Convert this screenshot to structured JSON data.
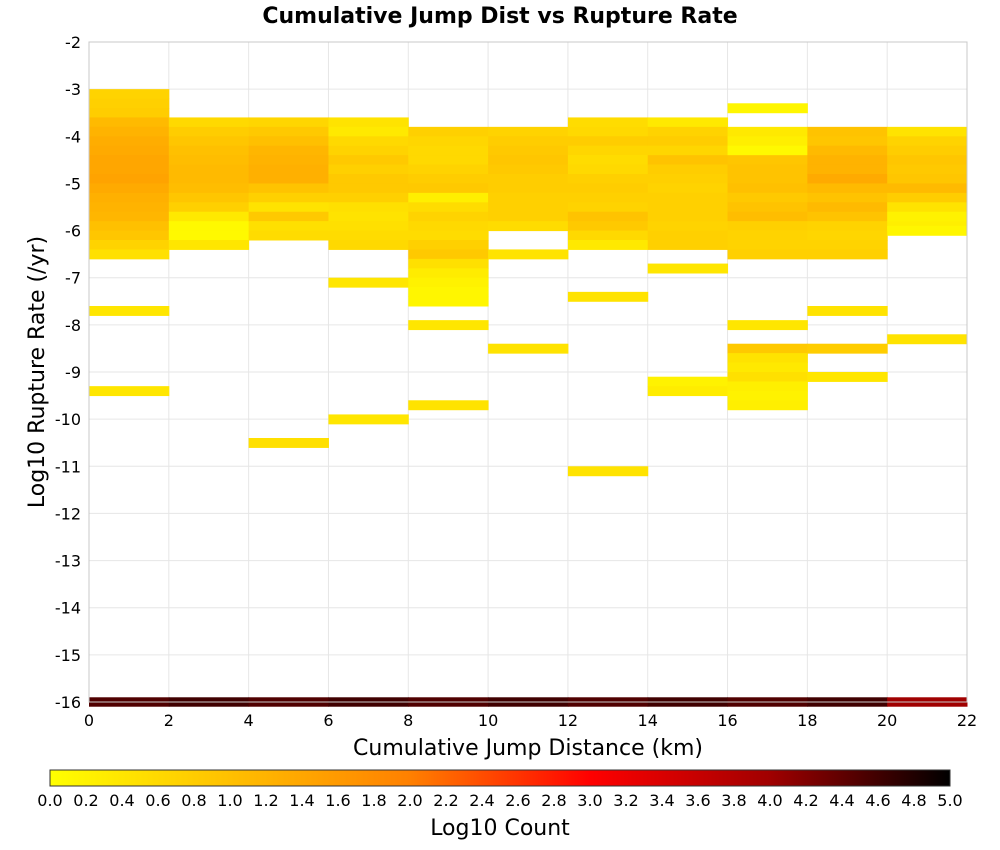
{
  "chart_data": {
    "type": "heatmap",
    "title": "Cumulative Jump Dist vs Rupture Rate",
    "xlabel": "Cumulative Jump Distance (km)",
    "ylabel": "Log10 Rupture Rate (/yr)",
    "xlim": [
      0,
      22
    ],
    "ylim": [
      -16,
      -2
    ],
    "x_ticks": [
      "0",
      "2",
      "4",
      "6",
      "8",
      "10",
      "12",
      "14",
      "16",
      "18",
      "20",
      "22"
    ],
    "y_ticks": [
      "-2",
      "-3",
      "-4",
      "-5",
      "-6",
      "-7",
      "-8",
      "-9",
      "-10",
      "-11",
      "-12",
      "-13",
      "-14",
      "-15",
      "-16"
    ],
    "x_bin_width": 2,
    "y_bin_width": 0.2,
    "grid": true,
    "colorbar": {
      "label": "Log10 Count",
      "range": [
        0,
        5
      ],
      "ticks": [
        "0.0",
        "0.2",
        "0.4",
        "0.6",
        "0.8",
        "1.0",
        "1.2",
        "1.4",
        "1.6",
        "1.8",
        "2.0",
        "2.2",
        "2.4",
        "2.6",
        "2.8",
        "3.0",
        "3.2",
        "3.4",
        "3.6",
        "3.8",
        "4.0",
        "4.2",
        "4.4",
        "4.6",
        "4.8",
        "5.0"
      ],
      "colors": [
        "#ffff00",
        "#ffc000",
        "#ff8000",
        "#ff0000",
        "#a00000",
        "#000000"
      ]
    },
    "cells": [
      [
        0,
        -3.1,
        0.7
      ],
      [
        0,
        -3.3,
        0.75
      ],
      [
        0,
        -3.5,
        0.8
      ],
      [
        0,
        -3.7,
        1.1
      ],
      [
        0,
        -3.9,
        1.2
      ],
      [
        0,
        -4.1,
        1.3
      ],
      [
        0,
        -4.3,
        1.35
      ],
      [
        0,
        -4.5,
        1.4
      ],
      [
        0,
        -4.7,
        1.4
      ],
      [
        0,
        -4.9,
        1.45
      ],
      [
        0,
        -5.1,
        1.35
      ],
      [
        0,
        -5.3,
        1.25
      ],
      [
        0,
        -5.5,
        1.2
      ],
      [
        0,
        -5.7,
        1.15
      ],
      [
        0,
        -5.9,
        1.0
      ],
      [
        0,
        -6.1,
        0.9
      ],
      [
        0,
        -6.3,
        0.7
      ],
      [
        0,
        -6.5,
        0.5
      ],
      [
        0,
        -7.7,
        0.4
      ],
      [
        0,
        -9.4,
        0.4
      ],
      [
        2,
        -3.7,
        0.6
      ],
      [
        2,
        -3.9,
        0.8
      ],
      [
        2,
        -4.1,
        0.9
      ],
      [
        2,
        -4.3,
        1.0
      ],
      [
        2,
        -4.5,
        1.05
      ],
      [
        2,
        -4.7,
        1.1
      ],
      [
        2,
        -4.9,
        1.1
      ],
      [
        2,
        -5.1,
        1.05
      ],
      [
        2,
        -5.3,
        0.9
      ],
      [
        2,
        -5.5,
        0.75
      ],
      [
        2,
        -5.7,
        0.35
      ],
      [
        2,
        -5.9,
        0.1
      ],
      [
        2,
        -6.1,
        0.1
      ],
      [
        2,
        -6.3,
        0.4
      ],
      [
        4,
        -3.7,
        0.65
      ],
      [
        4,
        -3.9,
        0.85
      ],
      [
        4,
        -4.1,
        1.0
      ],
      [
        4,
        -4.3,
        1.15
      ],
      [
        4,
        -4.5,
        1.2
      ],
      [
        4,
        -4.7,
        1.25
      ],
      [
        4,
        -4.9,
        1.25
      ],
      [
        4,
        -5.1,
        0.95
      ],
      [
        4,
        -5.3,
        0.75
      ],
      [
        4,
        -5.5,
        0.45
      ],
      [
        4,
        -5.7,
        0.85
      ],
      [
        4,
        -5.9,
        0.5
      ],
      [
        4,
        -6.1,
        0.55
      ],
      [
        4,
        -10.5,
        0.5
      ],
      [
        6,
        -3.7,
        0.45
      ],
      [
        6,
        -3.9,
        0.35
      ],
      [
        6,
        -4.1,
        0.6
      ],
      [
        6,
        -4.3,
        0.7
      ],
      [
        6,
        -4.5,
        0.85
      ],
      [
        6,
        -4.7,
        0.75
      ],
      [
        6,
        -4.9,
        0.85
      ],
      [
        6,
        -5.1,
        0.85
      ],
      [
        6,
        -5.3,
        0.75
      ],
      [
        6,
        -5.5,
        0.5
      ],
      [
        6,
        -5.7,
        0.45
      ],
      [
        6,
        -5.9,
        0.5
      ],
      [
        6,
        -6.1,
        0.55
      ],
      [
        6,
        -6.3,
        0.6
      ],
      [
        6,
        -7.1,
        0.4
      ],
      [
        6,
        -10.0,
        0.4
      ],
      [
        8,
        -3.9,
        0.75
      ],
      [
        8,
        -4.1,
        0.65
      ],
      [
        8,
        -4.3,
        0.6
      ],
      [
        8,
        -4.5,
        0.6
      ],
      [
        8,
        -4.7,
        0.7
      ],
      [
        8,
        -4.9,
        0.8
      ],
      [
        8,
        -5.1,
        0.85
      ],
      [
        8,
        -5.3,
        0.25
      ],
      [
        8,
        -5.5,
        0.55
      ],
      [
        8,
        -5.7,
        0.7
      ],
      [
        8,
        -5.9,
        0.6
      ],
      [
        8,
        -6.1,
        0.55
      ],
      [
        8,
        -6.3,
        0.75
      ],
      [
        8,
        -6.5,
        0.85
      ],
      [
        8,
        -6.7,
        0.5
      ],
      [
        8,
        -6.9,
        0.3
      ],
      [
        8,
        -7.1,
        0.2
      ],
      [
        8,
        -7.3,
        0.15
      ],
      [
        8,
        -7.5,
        0.15
      ],
      [
        8,
        -8.0,
        0.4
      ],
      [
        8,
        -9.7,
        0.45
      ],
      [
        10,
        -3.9,
        0.7
      ],
      [
        10,
        -4.1,
        0.8
      ],
      [
        10,
        -4.3,
        0.85
      ],
      [
        10,
        -4.5,
        0.9
      ],
      [
        10,
        -4.7,
        0.85
      ],
      [
        10,
        -4.9,
        0.8
      ],
      [
        10,
        -5.1,
        0.8
      ],
      [
        10,
        -5.3,
        0.75
      ],
      [
        10,
        -5.5,
        0.75
      ],
      [
        10,
        -5.7,
        0.75
      ],
      [
        10,
        -5.9,
        0.55
      ],
      [
        10,
        -6.5,
        0.45
      ],
      [
        10,
        -8.5,
        0.45
      ],
      [
        12,
        -3.7,
        0.55
      ],
      [
        12,
        -3.9,
        0.6
      ],
      [
        12,
        -4.1,
        0.8
      ],
      [
        12,
        -4.3,
        0.65
      ],
      [
        12,
        -4.5,
        0.55
      ],
      [
        12,
        -4.7,
        0.6
      ],
      [
        12,
        -4.9,
        0.75
      ],
      [
        12,
        -5.1,
        0.8
      ],
      [
        12,
        -5.3,
        0.75
      ],
      [
        12,
        -5.5,
        0.7
      ],
      [
        12,
        -5.7,
        0.95
      ],
      [
        12,
        -5.9,
        0.85
      ],
      [
        12,
        -6.1,
        0.6
      ],
      [
        12,
        -6.3,
        0.35
      ],
      [
        12,
        -7.4,
        0.45
      ],
      [
        12,
        -11.1,
        0.45
      ],
      [
        14,
        -3.7,
        0.35
      ],
      [
        14,
        -3.9,
        0.7
      ],
      [
        14,
        -4.1,
        0.8
      ],
      [
        14,
        -4.3,
        0.65
      ],
      [
        14,
        -4.5,
        0.95
      ],
      [
        14,
        -4.7,
        0.8
      ],
      [
        14,
        -4.9,
        0.75
      ],
      [
        14,
        -5.1,
        0.7
      ],
      [
        14,
        -5.3,
        0.75
      ],
      [
        14,
        -5.5,
        0.75
      ],
      [
        14,
        -5.7,
        0.75
      ],
      [
        14,
        -5.9,
        0.7
      ],
      [
        14,
        -6.1,
        0.75
      ],
      [
        14,
        -6.3,
        0.75
      ],
      [
        14,
        -6.8,
        0.4
      ],
      [
        14,
        -9.2,
        0.2
      ],
      [
        14,
        -9.4,
        0.3
      ],
      [
        16,
        -3.4,
        0.15
      ],
      [
        16,
        -3.9,
        0.35
      ],
      [
        16,
        -4.1,
        0.25
      ],
      [
        16,
        -4.3,
        0.1
      ],
      [
        16,
        -4.5,
        0.9
      ],
      [
        16,
        -4.7,
        0.95
      ],
      [
        16,
        -4.9,
        0.95
      ],
      [
        16,
        -5.1,
        1.0
      ],
      [
        16,
        -5.3,
        0.85
      ],
      [
        16,
        -5.5,
        0.95
      ],
      [
        16,
        -5.7,
        1.05
      ],
      [
        16,
        -5.9,
        0.75
      ],
      [
        16,
        -6.1,
        0.7
      ],
      [
        16,
        -6.3,
        0.7
      ],
      [
        16,
        -6.5,
        0.75
      ],
      [
        16,
        -8.0,
        0.4
      ],
      [
        16,
        -8.5,
        0.85
      ],
      [
        16,
        -8.7,
        0.45
      ],
      [
        16,
        -8.9,
        0.35
      ],
      [
        16,
        -9.1,
        0.5
      ],
      [
        16,
        -9.3,
        0.25
      ],
      [
        16,
        -9.5,
        0.2
      ],
      [
        16,
        -9.7,
        0.25
      ],
      [
        18,
        -3.9,
        0.95
      ],
      [
        18,
        -4.1,
        0.9
      ],
      [
        18,
        -4.3,
        1.1
      ],
      [
        18,
        -4.5,
        1.2
      ],
      [
        18,
        -4.7,
        1.2
      ],
      [
        18,
        -4.9,
        1.35
      ],
      [
        18,
        -5.1,
        1.1
      ],
      [
        18,
        -5.3,
        0.95
      ],
      [
        18,
        -5.5,
        1.1
      ],
      [
        18,
        -5.7,
        0.95
      ],
      [
        18,
        -5.9,
        0.7
      ],
      [
        18,
        -6.1,
        0.65
      ],
      [
        18,
        -6.3,
        0.7
      ],
      [
        18,
        -6.5,
        0.75
      ],
      [
        18,
        -7.7,
        0.45
      ],
      [
        18,
        -8.5,
        0.8
      ],
      [
        18,
        -9.1,
        0.4
      ],
      [
        20,
        -3.9,
        0.45
      ],
      [
        20,
        -4.1,
        0.7
      ],
      [
        20,
        -4.3,
        0.8
      ],
      [
        20,
        -4.5,
        0.9
      ],
      [
        20,
        -4.7,
        0.85
      ],
      [
        20,
        -4.9,
        0.9
      ],
      [
        20,
        -5.1,
        1.1
      ],
      [
        20,
        -5.3,
        0.8
      ],
      [
        20,
        -5.5,
        0.45
      ],
      [
        20,
        -5.7,
        0.2
      ],
      [
        20,
        -5.9,
        0.25
      ],
      [
        20,
        -6.0,
        0.15
      ],
      [
        20,
        -8.3,
        0.45
      ]
    ],
    "bottom_row": {
      "y": -16,
      "values": [
        4.5,
        4.6,
        4.5,
        4.6,
        4.5,
        4.6,
        4.5,
        4.6,
        4.5,
        4.6,
        4.0
      ]
    }
  }
}
